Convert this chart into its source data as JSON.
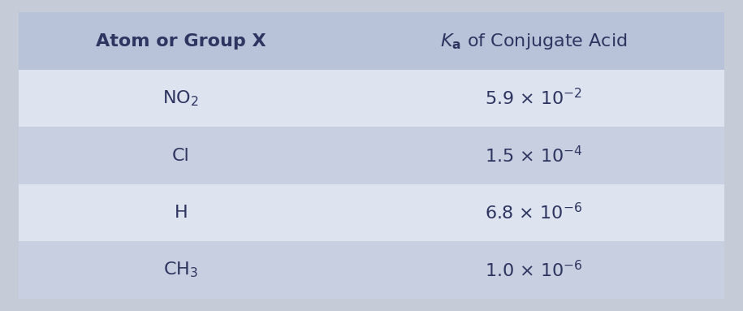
{
  "col1_header": "Atom or Group X",
  "col2_header_pre": " of Conjugate Acid",
  "rows": [
    {
      "col1": "NO$_2$",
      "col2": "5.9 × 10$^{-2}$"
    },
    {
      "col1": "Cl",
      "col2": "1.5 × 10$^{-4}$"
    },
    {
      "col1": "H",
      "col2": "6.8 × 10$^{-6}$"
    },
    {
      "col1": "CH$_3$",
      "col2": "1.0 × 10$^{-6}$"
    }
  ],
  "header_bg": "#b8c2d8",
  "row_bg_odd": "#dde3ef",
  "row_bg_even": "#c8cfe0",
  "fig_bg": "#c5ccd8",
  "text_color": "#2e3560",
  "header_fontsize": 16,
  "cell_fontsize": 16,
  "col_split": 0.46
}
